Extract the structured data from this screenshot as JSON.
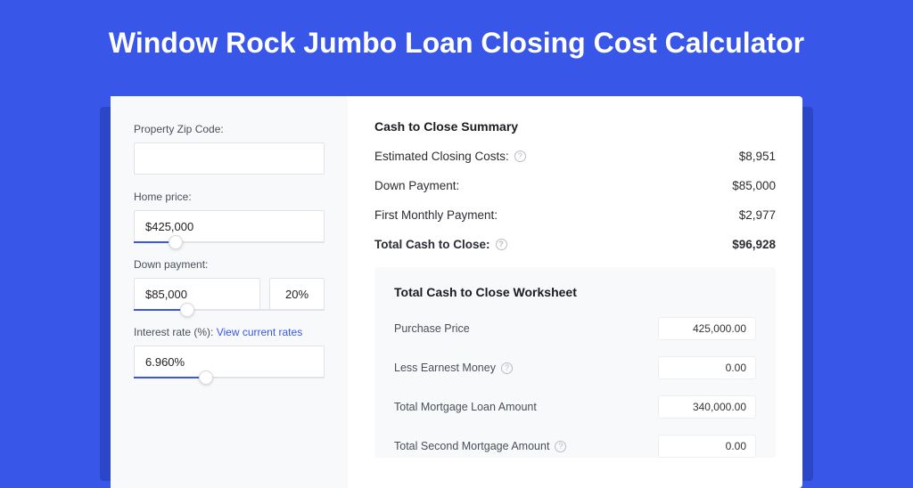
{
  "colors": {
    "page_bg": "#3856e8",
    "shadow": "#2b46c6",
    "panel_bg": "#ffffff",
    "left_bg": "#f8f9fb",
    "input_border": "#e1e3e8",
    "link": "#3856e8",
    "text_heading": "#1a1c21",
    "text_body": "#4a4f59"
  },
  "title": "Window Rock Jumbo Loan Closing Cost Calculator",
  "form": {
    "zip_label": "Property Zip Code:",
    "zip_value": "",
    "home_price_label": "Home price:",
    "home_price_value": "$425,000",
    "home_price_slider_pct": 22,
    "down_payment_label": "Down payment:",
    "down_payment_value": "$85,000",
    "down_payment_pct_value": "20%",
    "down_payment_slider_pct": 28,
    "interest_label_prefix": "Interest rate (%): ",
    "interest_link": "View current rates",
    "interest_value": "6.960%",
    "interest_slider_pct": 38
  },
  "summary": {
    "heading": "Cash to Close Summary",
    "rows": [
      {
        "label": "Estimated Closing Costs:",
        "help": true,
        "value": "$8,951",
        "bold": false
      },
      {
        "label": "Down Payment:",
        "help": false,
        "value": "$85,000",
        "bold": false
      },
      {
        "label": "First Monthly Payment:",
        "help": false,
        "value": "$2,977",
        "bold": false
      },
      {
        "label": "Total Cash to Close:",
        "help": true,
        "value": "$96,928",
        "bold": true
      }
    ]
  },
  "worksheet": {
    "heading": "Total Cash to Close Worksheet",
    "rows": [
      {
        "label": "Purchase Price",
        "help": false,
        "value": "425,000.00"
      },
      {
        "label": "Less Earnest Money",
        "help": true,
        "value": "0.00"
      },
      {
        "label": "Total Mortgage Loan Amount",
        "help": false,
        "value": "340,000.00"
      },
      {
        "label": "Total Second Mortgage Amount",
        "help": true,
        "value": "0.00"
      }
    ]
  }
}
